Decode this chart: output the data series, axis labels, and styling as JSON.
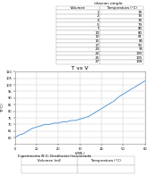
{
  "title_exp1": "tilación simple",
  "col1_header": "Volumen",
  "col2_header": "Temperatura (°C)",
  "table_data": [
    [
      "1",
      "78"
    ],
    [
      "2",
      "78"
    ],
    [
      "3",
      "78"
    ],
    [
      "5",
      "79"
    ],
    [
      "7",
      "80"
    ],
    [
      "10",
      "80"
    ],
    [
      "12",
      "81"
    ],
    [
      "15",
      "85"
    ],
    [
      "17",
      "90"
    ],
    [
      "20",
      "95"
    ],
    [
      "22",
      "100"
    ],
    [
      "25",
      "105"
    ],
    [
      "27",
      "108"
    ]
  ],
  "chart_title": "T vs V",
  "xlabel": "V(ML)",
  "ylabel": "T(°C)",
  "x_data": [
    0,
    2,
    4,
    6,
    8,
    10,
    12,
    14,
    16,
    18,
    20,
    22,
    24,
    26,
    28,
    30,
    32,
    34,
    36,
    38,
    40,
    42,
    44,
    46,
    48,
    50,
    52,
    54,
    56,
    58,
    60
  ],
  "y_data": [
    60,
    62,
    63,
    65,
    67,
    68,
    69,
    70,
    70,
    71,
    71,
    72,
    72,
    73,
    73,
    74,
    75,
    76,
    78,
    80,
    82,
    84,
    86,
    88,
    91,
    93,
    95,
    97,
    99,
    101,
    103
  ],
  "xlim": [
    0,
    60
  ],
  "ylim": [
    55,
    110
  ],
  "x_ticks": [
    0,
    10,
    20,
    30,
    40,
    50,
    60
  ],
  "y_ticks": [
    60,
    65,
    70,
    75,
    80,
    85,
    90,
    95,
    100,
    105,
    110
  ],
  "exp2_title": "Experimento N°2: Destilación fraccionada",
  "col1_exp2": "Volumen (ml)",
  "col2_exp2": "Temperatura (°C)",
  "line_color": "#5b9bd5",
  "bg_color": "#ffffff",
  "grid_color": "#c8c8c8",
  "table_line_color": "#aaaaaa"
}
